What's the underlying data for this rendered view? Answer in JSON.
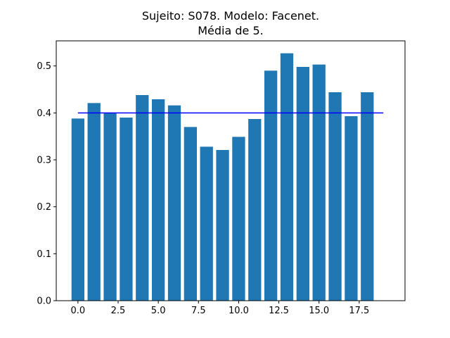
{
  "chart_data": {
    "type": "bar",
    "title_lines": [
      "Sujeito: S078. Modelo: Facenet.",
      "Média de 5."
    ],
    "xlabel": "",
    "ylabel": "",
    "x": [
      0,
      1,
      2,
      3,
      4,
      5,
      6,
      7,
      8,
      9,
      10,
      11,
      12,
      13,
      14,
      15,
      16,
      17,
      18
    ],
    "values": [
      0.388,
      0.421,
      0.4,
      0.39,
      0.438,
      0.429,
      0.416,
      0.37,
      0.328,
      0.321,
      0.349,
      0.387,
      0.49,
      0.527,
      0.498,
      0.503,
      0.444,
      0.393,
      0.444
    ],
    "bar_width": 0.8,
    "xlim": [
      -1.35,
      20.35
    ],
    "ylim": [
      0,
      0.5535
    ],
    "xticks": [
      0.0,
      2.5,
      5.0,
      7.5,
      10.0,
      12.5,
      15.0,
      17.5
    ],
    "xtick_labels": [
      "0.0",
      "2.5",
      "5.0",
      "7.5",
      "10.0",
      "12.5",
      "15.0",
      "17.5"
    ],
    "yticks": [
      0.0,
      0.1,
      0.2,
      0.3,
      0.4,
      0.5
    ],
    "ytick_labels": [
      "0.0",
      "0.1",
      "0.2",
      "0.3",
      "0.4",
      "0.5"
    ],
    "reference_line": {
      "y": 0.4,
      "x_start": 0,
      "x_end": 19,
      "color": "#0000ff"
    },
    "bar_color": "#1f77b4",
    "grid": false,
    "legend": "none"
  }
}
